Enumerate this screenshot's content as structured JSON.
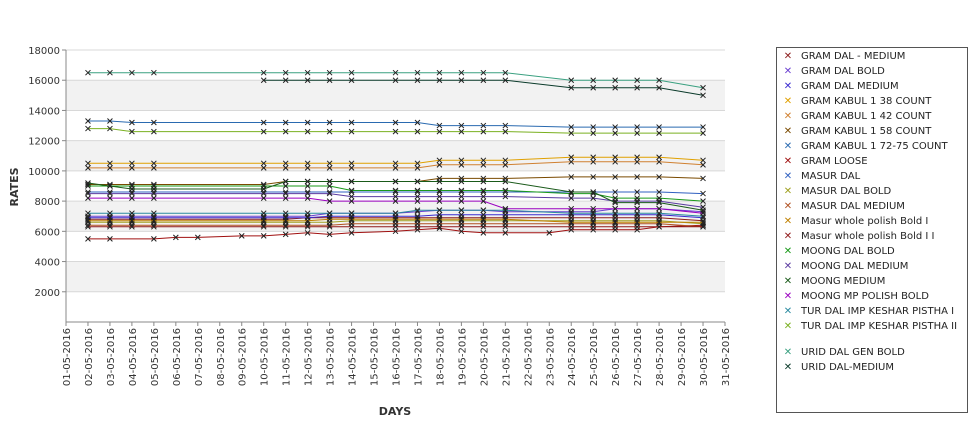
{
  "chart_data": {
    "type": "line",
    "title": "",
    "xlabel": "DAYS",
    "ylabel": "RATES",
    "ylim": [
      0,
      18000
    ],
    "yticks": [
      2000,
      4000,
      6000,
      8000,
      10000,
      12000,
      14000,
      16000,
      18000
    ],
    "x_tick_labels": [
      "01-05-2016",
      "02-05-2016",
      "03-05-2016",
      "04-05-2016",
      "05-05-2016",
      "06-05-2016",
      "07-05-2016",
      "08-05-2016",
      "09-05-2016",
      "10-05-2016",
      "11-05-2016",
      "12-05-2016",
      "13-05-2016",
      "14-05-2016",
      "15-05-2016",
      "16-05-2016",
      "17-05-2016",
      "18-05-2016",
      "19-05-2016",
      "20-05-2016",
      "21-05-2016",
      "22-05-2016",
      "23-05-2016",
      "24-05-2016",
      "25-05-2016",
      "26-05-2016",
      "27-05-2016",
      "28-05-2016",
      "29-05-2016",
      "30-05-2016",
      "31-05-2016"
    ],
    "grid": true,
    "legend_position": "right",
    "series": [
      {
        "name": "GRAM DAL - MEDIUM",
        "color": "#8b1a1a",
        "x": [
          2,
          3,
          4,
          5,
          10,
          11,
          12,
          13,
          14,
          16,
          17,
          18,
          19,
          20,
          21,
          24,
          25,
          26,
          27,
          28,
          30
        ],
        "values": [
          6800,
          6800,
          6800,
          6800,
          6800,
          6800,
          6900,
          6900,
          6900,
          6900,
          6900,
          6900,
          6900,
          6900,
          6900,
          6900,
          6900,
          6900,
          6900,
          6900,
          6700
        ]
      },
      {
        "name": "GRAM DAL BOLD",
        "color": "#6a3fd0",
        "x": [
          2,
          3,
          4,
          5,
          10,
          11,
          12,
          13,
          14,
          16,
          17,
          18,
          19,
          20,
          21,
          24,
          25,
          26,
          27,
          28,
          30
        ],
        "values": [
          7000,
          7000,
          7000,
          7000,
          7000,
          7000,
          7000,
          7200,
          7200,
          7200,
          7300,
          7400,
          7400,
          7400,
          7300,
          7300,
          7300,
          7500,
          7500,
          7500,
          7300
        ]
      },
      {
        "name": "GRAM DAL MEDIUM",
        "color": "#3a2ad0",
        "x": [
          2,
          3,
          4,
          5,
          10,
          11,
          12,
          13,
          14,
          16,
          17,
          18,
          19,
          20,
          21,
          24,
          25,
          26,
          27,
          28,
          30
        ],
        "values": [
          6900,
          6900,
          6900,
          6900,
          6900,
          6900,
          6900,
          7000,
          7000,
          7000,
          7000,
          7100,
          7100,
          7100,
          7100,
          7100,
          7100,
          7100,
          7100,
          7100,
          6900
        ]
      },
      {
        "name": "GRAM KABUL 1 38 COUNT",
        "color": "#e0a000",
        "x": [
          2,
          3,
          4,
          5,
          10,
          11,
          12,
          13,
          14,
          16,
          17,
          18,
          19,
          20,
          21,
          24,
          25,
          26,
          27,
          28,
          30
        ],
        "values": [
          10500,
          10500,
          10500,
          10500,
          10500,
          10500,
          10500,
          10500,
          10500,
          10500,
          10500,
          10700,
          10700,
          10700,
          10700,
          10900,
          10900,
          10900,
          10900,
          10900,
          10700
        ]
      },
      {
        "name": "GRAM KABUL 1 42 COUNT",
        "color": "#d08030",
        "x": [
          2,
          3,
          4,
          5,
          10,
          11,
          12,
          13,
          14,
          16,
          17,
          18,
          19,
          20,
          21,
          24,
          25,
          26,
          27,
          28,
          30
        ],
        "values": [
          10200,
          10200,
          10200,
          10200,
          10200,
          10200,
          10200,
          10200,
          10200,
          10200,
          10200,
          10400,
          10400,
          10400,
          10400,
          10600,
          10600,
          10600,
          10600,
          10600,
          10400
        ]
      },
      {
        "name": "GRAM KABUL 1 58 COUNT",
        "color": "#7a4a00",
        "x": [
          2,
          3,
          4,
          5,
          10,
          11,
          12,
          13,
          14,
          16,
          17,
          18,
          19,
          20,
          21,
          24,
          25,
          26,
          27,
          28,
          30
        ],
        "values": [
          9100,
          9100,
          9100,
          9100,
          9100,
          9300,
          9300,
          9300,
          9300,
          9300,
          9300,
          9500,
          9500,
          9500,
          9500,
          9600,
          9600,
          9600,
          9600,
          9600,
          9500
        ]
      },
      {
        "name": "GRAM KABUL 1 72-75 COUNT",
        "color": "#2a6ab0",
        "x": [
          2,
          3,
          4,
          5,
          10,
          11,
          12,
          13,
          14,
          16,
          17,
          18,
          19,
          20,
          21,
          24,
          25,
          26,
          27,
          28,
          30
        ],
        "values": [
          13300,
          13300,
          13200,
          13200,
          13200,
          13200,
          13200,
          13200,
          13200,
          13200,
          13200,
          13000,
          13000,
          13000,
          13000,
          12900,
          12900,
          12900,
          12900,
          12900,
          12900
        ]
      },
      {
        "name": "GRAM LOOSE",
        "color": "#a01010",
        "x": [
          2,
          3,
          5,
          6,
          7,
          9,
          10,
          11,
          12,
          13,
          14,
          16,
          17,
          18,
          19,
          20,
          21,
          23,
          24,
          25,
          26,
          27,
          28,
          30
        ],
        "values": [
          5500,
          5500,
          5500,
          5600,
          5600,
          5700,
          5700,
          5800,
          5900,
          5800,
          5900,
          6000,
          6100,
          6200,
          6000,
          5900,
          5900,
          5900,
          6100,
          6100,
          6100,
          6100,
          6300,
          6400
        ]
      },
      {
        "name": "MASUR DAL",
        "color": "#3060c0",
        "x": [
          2,
          3,
          4,
          5,
          10,
          11,
          12,
          13,
          14,
          16,
          17,
          18,
          19,
          20,
          21,
          24,
          25,
          26,
          27,
          28,
          30
        ],
        "values": [
          8600,
          8600,
          8600,
          8600,
          8600,
          8600,
          8600,
          8600,
          8600,
          8600,
          8600,
          8600,
          8600,
          8600,
          8600,
          8600,
          8600,
          8600,
          8600,
          8600,
          8500
        ]
      },
      {
        "name": "MASUR DAL BOLD",
        "color": "#a0a020",
        "x": [
          2,
          3,
          4,
          5,
          10,
          11,
          12,
          13,
          14,
          16,
          17,
          18,
          19,
          20,
          21,
          24,
          25,
          26,
          27,
          28,
          30
        ],
        "values": [
          6600,
          6600,
          6600,
          6600,
          6600,
          6600,
          6600,
          6600,
          6700,
          6700,
          6700,
          6700,
          6700,
          6700,
          6700,
          6700,
          6700,
          6700,
          6700,
          6700,
          6500
        ]
      },
      {
        "name": "MASUR DAL MEDIUM",
        "color": "#b05020",
        "x": [
          2,
          3,
          4,
          5,
          10,
          11,
          12,
          13,
          14,
          16,
          17,
          18,
          19,
          20,
          21,
          24,
          25,
          26,
          27,
          28,
          30
        ],
        "values": [
          6400,
          6400,
          6400,
          6400,
          6400,
          6400,
          6400,
          6400,
          6500,
          6500,
          6500,
          6500,
          6500,
          6500,
          6500,
          6500,
          6500,
          6500,
          6500,
          6500,
          6300
        ]
      },
      {
        "name": "Masur whole polish Bold I",
        "color": "#c08000",
        "x": [
          2,
          3,
          4,
          5,
          10,
          11,
          12,
          13,
          14,
          16,
          17,
          18,
          19,
          20,
          21,
          24,
          25,
          26,
          27,
          28,
          30
        ],
        "values": [
          6700,
          6700,
          6700,
          6700,
          6700,
          6700,
          6700,
          6800,
          6800,
          6800,
          6800,
          6800,
          6800,
          6800,
          6800,
          6600,
          6600,
          6600,
          6600,
          6600,
          6600
        ]
      },
      {
        "name": "Masur whole polish Bold I I",
        "color": "#901818",
        "x": [
          2,
          3,
          4,
          5,
          10,
          11,
          12,
          13,
          14,
          16,
          17,
          18,
          19,
          20,
          21,
          24,
          25,
          26,
          27,
          28,
          30
        ],
        "values": [
          6300,
          6300,
          6300,
          6300,
          6300,
          6300,
          6300,
          6300,
          6300,
          6300,
          6300,
          6300,
          6300,
          6300,
          6300,
          6300,
          6300,
          6300,
          6300,
          6300,
          6300
        ]
      },
      {
        "name": "MOONG DAL BOLD",
        "color": "#1a9a1a",
        "x": [
          2,
          3,
          4,
          5,
          10,
          11,
          12,
          13,
          14,
          16,
          17,
          18,
          19,
          20,
          21,
          24,
          25,
          26,
          27,
          28,
          30
        ],
        "values": [
          9000,
          9000,
          9000,
          9000,
          9000,
          9000,
          9000,
          9000,
          8700,
          8700,
          8700,
          8700,
          8700,
          8700,
          8700,
          8500,
          8500,
          8200,
          8200,
          8200,
          8000
        ]
      },
      {
        "name": "MOONG DAL MEDIUM",
        "color": "#5a3aa0",
        "x": [
          2,
          3,
          4,
          5,
          10,
          11,
          12,
          13,
          14,
          16,
          17,
          18,
          19,
          20,
          21,
          24,
          25,
          26,
          27,
          28,
          30
        ],
        "values": [
          8500,
          8500,
          8500,
          8500,
          8500,
          8500,
          8500,
          8500,
          8300,
          8300,
          8300,
          8300,
          8300,
          8300,
          8300,
          8200,
          8200,
          8000,
          8000,
          8000,
          7600
        ]
      },
      {
        "name": "MOONG MEDIUM",
        "color": "#1a5a1a",
        "x": [
          2,
          3,
          4,
          5,
          10,
          11,
          12,
          13,
          14,
          16,
          17,
          18,
          19,
          20,
          21,
          24,
          25,
          26,
          27,
          28,
          30
        ],
        "values": [
          9200,
          9000,
          8800,
          8800,
          8800,
          9300,
          9300,
          9300,
          9300,
          9300,
          9300,
          9300,
          9300,
          9300,
          9300,
          8600,
          8600,
          7900,
          7900,
          7900,
          7400
        ]
      },
      {
        "name": "MOONG MP POLISH BOLD",
        "color": "#9a00c0",
        "x": [
          2,
          3,
          4,
          5,
          10,
          11,
          12,
          13,
          14,
          16,
          17,
          18,
          19,
          20,
          21,
          24,
          25,
          26,
          27,
          28,
          30
        ],
        "values": [
          8200,
          8200,
          8200,
          8200,
          8200,
          8200,
          8200,
          8000,
          8000,
          8000,
          8000,
          8000,
          8000,
          8000,
          7500,
          7500,
          7500,
          7500,
          7500,
          7500,
          7200
        ]
      },
      {
        "name": "TUR DAL IMP KESHAR PISTHA I",
        "color": "#2a8aa0",
        "x": [
          2,
          3,
          4,
          5,
          10,
          11,
          12,
          13,
          14,
          16,
          17,
          18,
          19,
          20,
          21,
          24,
          25,
          26,
          27,
          28,
          30
        ],
        "values": [
          7200,
          7200,
          7200,
          7200,
          7200,
          7200,
          7200,
          7200,
          7200,
          7200,
          7400,
          7400,
          7400,
          7400,
          7400,
          7200,
          7200,
          7200,
          7200,
          7200,
          7000
        ]
      },
      {
        "name": "TUR DAL IMP KESHAR PISTHA II",
        "color": "#7ab020",
        "x": [
          2,
          3,
          4,
          5,
          10,
          11,
          12,
          13,
          14,
          16,
          17,
          18,
          19,
          20,
          21,
          24,
          25,
          26,
          27,
          28,
          30
        ],
        "values": [
          12800,
          12800,
          12600,
          12600,
          12600,
          12600,
          12600,
          12600,
          12600,
          12600,
          12600,
          12600,
          12600,
          12600,
          12600,
          12500,
          12500,
          12500,
          12500,
          12500,
          12500
        ]
      },
      {
        "name": "URID DAL GEN BOLD",
        "color": "#3aa080",
        "x": [
          2,
          3,
          4,
          5,
          10,
          11,
          12,
          13,
          14,
          16,
          17,
          18,
          19,
          20,
          21,
          24,
          25,
          26,
          27,
          28,
          30
        ],
        "values": [
          16500,
          16500,
          16500,
          16500,
          16500,
          16500,
          16500,
          16500,
          16500,
          16500,
          16500,
          16500,
          16500,
          16500,
          16500,
          16000,
          16000,
          16000,
          16000,
          16000,
          15500
        ]
      },
      {
        "name": "URID DAL-MEDIUM",
        "color": "#0a3a2a",
        "x": [
          10,
          11,
          12,
          13,
          14,
          16,
          17,
          18,
          19,
          20,
          21,
          24,
          25,
          26,
          27,
          28,
          30
        ],
        "values": [
          16000,
          16000,
          16000,
          16000,
          16000,
          16000,
          16000,
          16000,
          16000,
          16000,
          16000,
          15500,
          15500,
          15500,
          15500,
          15500,
          15000
        ]
      }
    ]
  }
}
